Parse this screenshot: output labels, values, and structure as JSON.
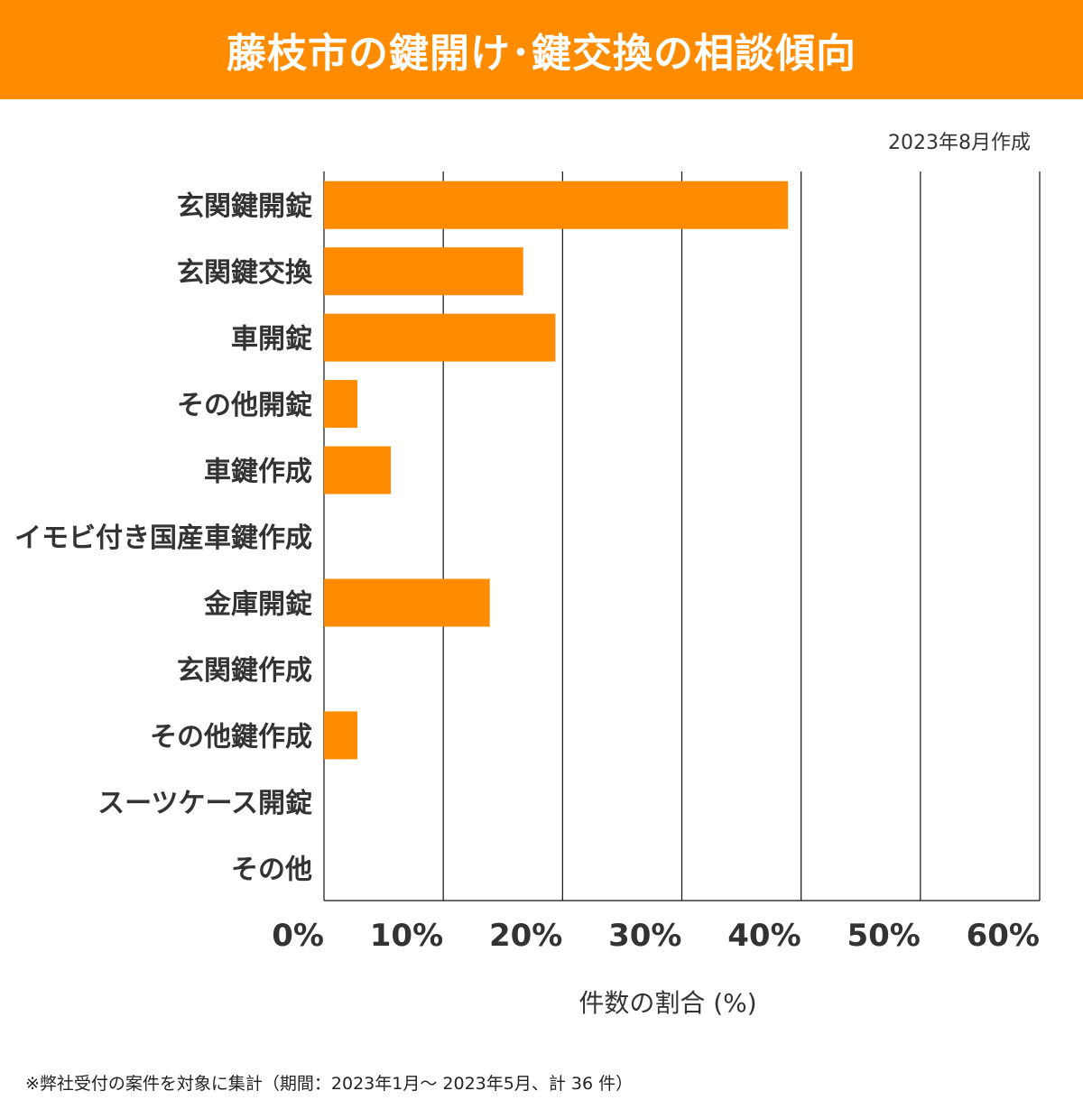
{
  "chart_data": {
    "type": "bar",
    "orientation": "horizontal",
    "title": "藤枝市の鍵開け･鍵交換の相談傾向",
    "subtitle": "2023年8月作成",
    "xlabel": "件数の割合 (%)",
    "ylabel": "",
    "xlim": [
      0,
      60
    ],
    "x_ticks": [
      "0%",
      "10%",
      "20%",
      "30%",
      "40%",
      "50%",
      "60%"
    ],
    "grid": true,
    "categories": [
      "玄関鍵開錠",
      "玄関鍵交換",
      "車開錠",
      "その他開錠",
      "車鍵作成",
      "イモビ付き国産車鍵作成",
      "金庫開錠",
      "玄関鍵作成",
      "その他鍵作成",
      "スーツケース開錠",
      "その他"
    ],
    "values": [
      38.9,
      16.7,
      19.4,
      2.8,
      5.6,
      0,
      13.9,
      0,
      2.8,
      0,
      0
    ],
    "bar_color": "#FF8C00",
    "footnote": "※弊社受付の案件を対象に集計（期間：2023年1月～ 2023年5月、計 36 件）"
  },
  "colors": {
    "banner": "#FF8C00",
    "bar": "#FF8C00"
  }
}
